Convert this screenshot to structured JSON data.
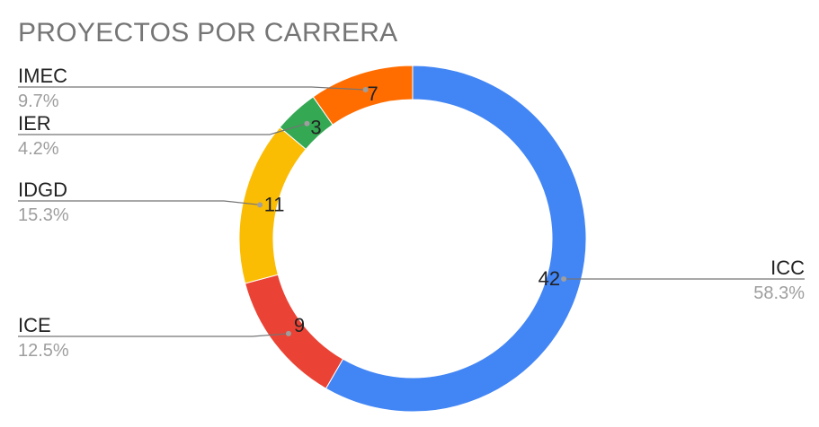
{
  "chart_data": {
    "type": "pie",
    "donut": true,
    "title": "PROYECTOS POR CARRERA",
    "slices": [
      {
        "name": "ICC",
        "value": 42,
        "percent": "58.3%",
        "color": "#4285f4"
      },
      {
        "name": "ICE",
        "value": 9,
        "percent": "12.5%",
        "color": "#ea4335"
      },
      {
        "name": "IDGD",
        "value": 11,
        "percent": "15.3%",
        "color": "#fbbc04"
      },
      {
        "name": "IER",
        "value": 3,
        "percent": "4.2%",
        "color": "#34a853"
      },
      {
        "name": "IMEC",
        "value": 7,
        "percent": "9.7%",
        "color": "#ff6d01"
      }
    ],
    "legend": "leader-line labels"
  }
}
